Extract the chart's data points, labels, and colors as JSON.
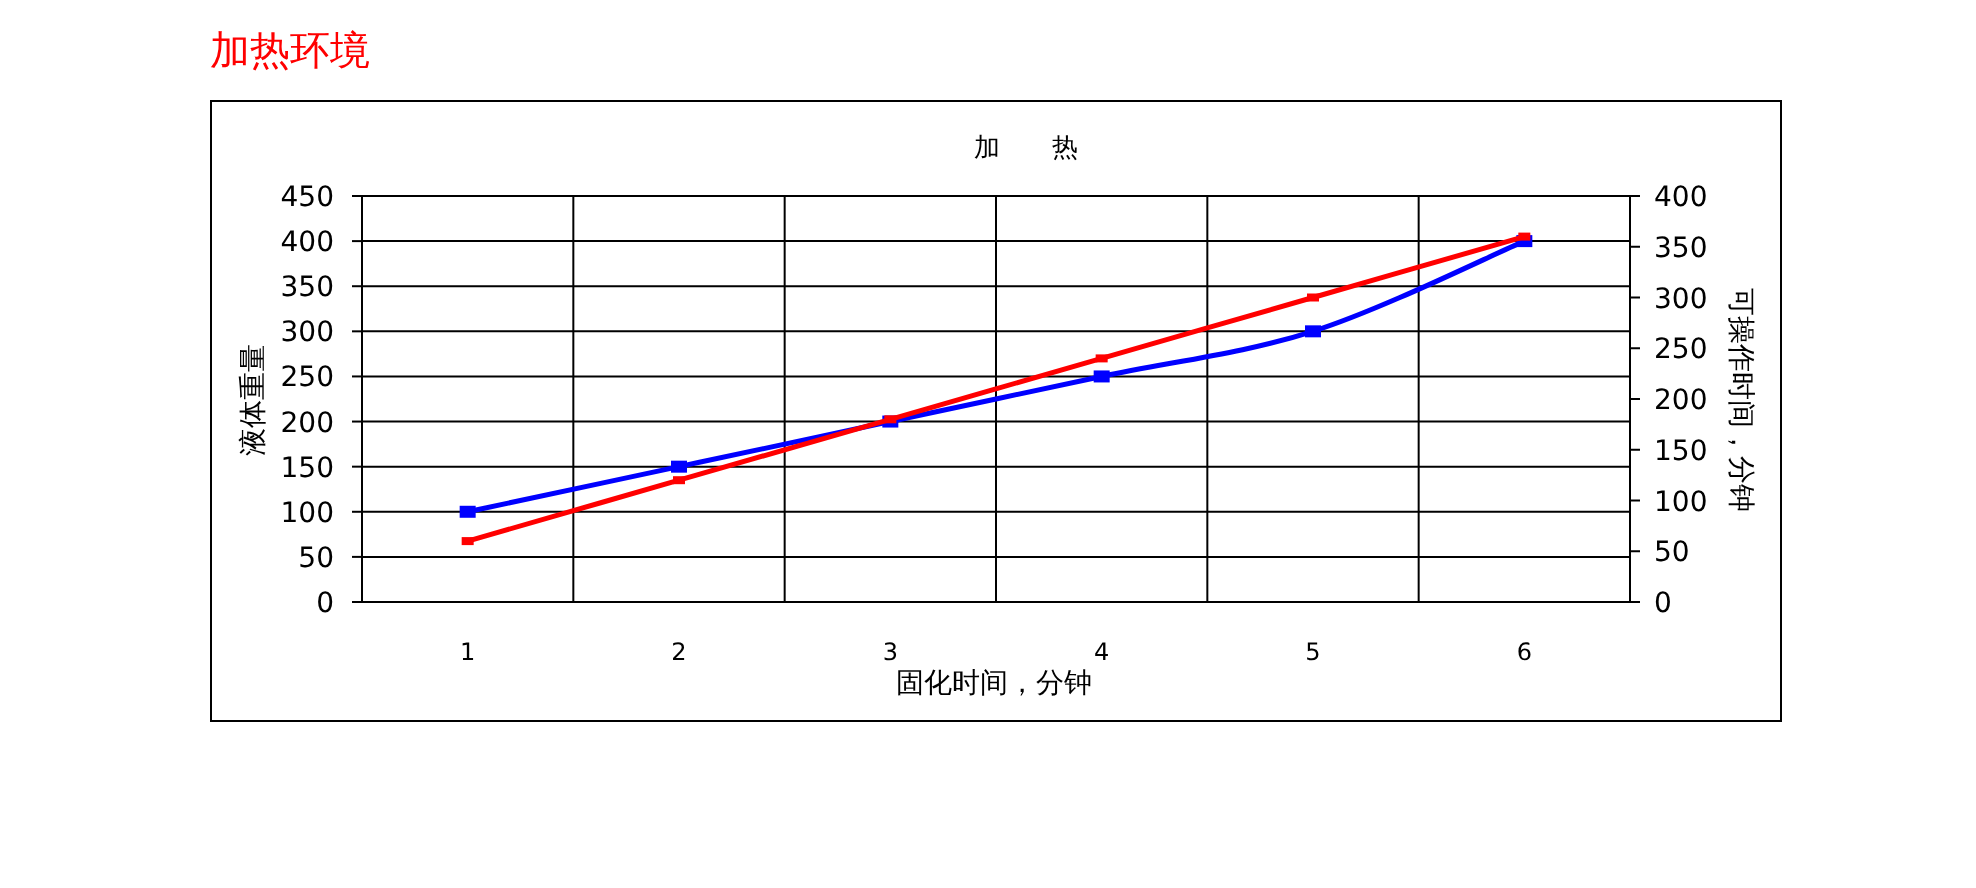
{
  "chart_data": {
    "type": "line",
    "title": "加热环境",
    "subtitle": "加　　热",
    "xlabel": "固化时间，分钟",
    "ylabel": "液体重量",
    "y2label": "可操作时间，分钟",
    "categories": [
      "1",
      "2",
      "3",
      "4",
      "5",
      "6"
    ],
    "series": [
      {
        "color": "#0000ff",
        "values": [
          100,
          150,
          200,
          250,
          300,
          400
        ]
      },
      {
        "color": "#ff0000",
        "axis": "y2",
        "values": [
          60,
          120,
          180,
          240,
          300,
          360
        ]
      }
    ],
    "ylim": [
      0,
      450
    ],
    "yticks": [
      0,
      50,
      100,
      150,
      200,
      250,
      300,
      350,
      400,
      450
    ],
    "y2lim": [
      0,
      400
    ],
    "y2ticks": [
      0,
      50,
      100,
      150,
      200,
      250,
      300,
      350,
      400
    ],
    "grid": true,
    "marker": "square",
    "line_style": "solid"
  }
}
